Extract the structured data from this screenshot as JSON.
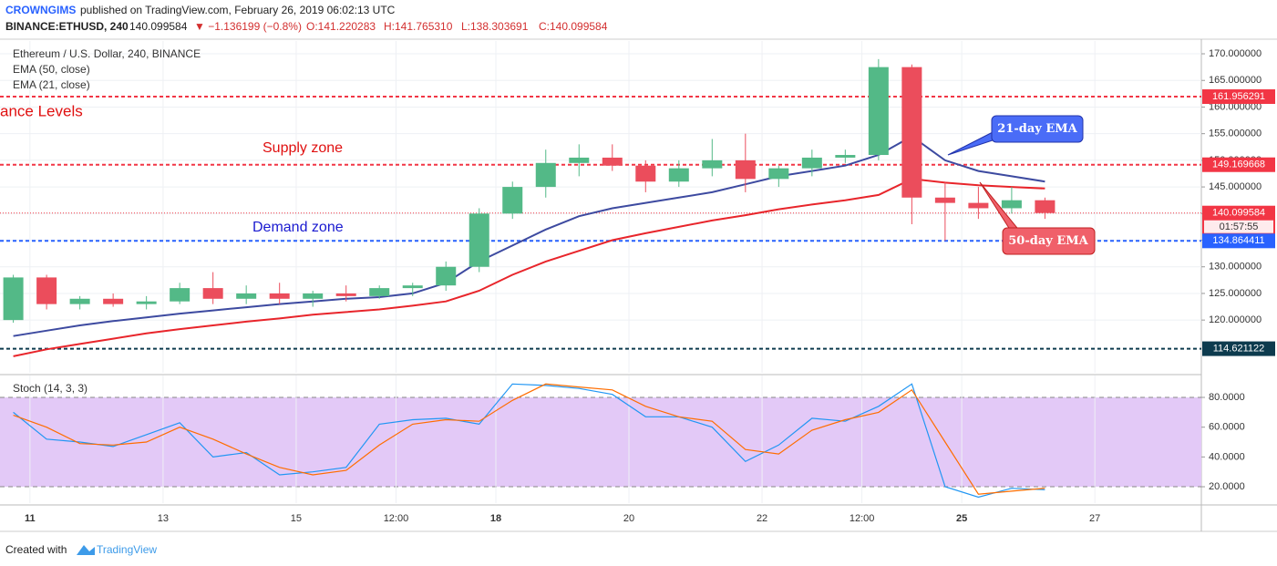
{
  "header": {
    "author": "CROWNGIMS",
    "published": "published on TradingView.com, February 26, 2019 06:02:13 UTC",
    "symbol": "BINANCE:ETHUSD, 240",
    "price": "140.099584",
    "change": "▼ −1.136199 (−0.8%)",
    "ohlc": [
      "O:141.220283",
      "H:141.765310",
      "L:138.303691",
      "C:140.099584"
    ]
  },
  "chart_data": [
    {
      "type": "candlestick",
      "title": "Ethereum / U.S. Dollar, 240, BINANCE",
      "annotations": [
        "ance Levels",
        "Supply zone",
        "Demand zone",
        "21-day EMA",
        "50-day EMA"
      ],
      "up_color": "#53b987",
      "down_color": "#eb4d5c",
      "x": [
        10.75,
        11.25,
        11.75,
        12.25,
        12.75,
        13.25,
        13.75,
        14.25,
        14.75,
        15.25,
        15.75,
        16.25,
        16.75,
        17.25,
        17.75,
        18.25,
        18.75,
        19.25,
        19.75,
        20.25,
        20.75,
        21.25,
        21.75,
        22.25,
        22.75,
        23.25,
        23.75,
        24.25,
        24.75,
        25.25,
        25.75,
        26.25
      ],
      "open": [
        120,
        128,
        123,
        124,
        123,
        123.5,
        126,
        124,
        125,
        124,
        125,
        124.5,
        126,
        126.5,
        130,
        140,
        145,
        149.5,
        150.5,
        149,
        146,
        148.5,
        150,
        146.5,
        148.5,
        150.5,
        151,
        167.5,
        143,
        142,
        141,
        142.5
      ],
      "high": [
        128.5,
        128.5,
        124.5,
        125,
        124.5,
        127,
        129,
        126.5,
        127,
        125.5,
        126.5,
        126.5,
        127,
        131,
        141,
        146,
        152,
        153,
        153,
        150,
        150,
        154,
        155,
        149,
        152,
        152,
        169,
        168,
        146,
        145,
        145,
        143
      ],
      "low": [
        119.5,
        122,
        122,
        122.5,
        122,
        123,
        123,
        123,
        123,
        122.5,
        123.5,
        124,
        124.5,
        125.5,
        129,
        139,
        143,
        147,
        148,
        144,
        145,
        147,
        144,
        145,
        147,
        149.5,
        150,
        138,
        134.9,
        139,
        140,
        139
      ],
      "close": [
        128,
        123,
        124,
        123,
        123.5,
        126,
        124,
        125,
        124,
        125,
        124.5,
        126,
        126.5,
        130,
        140,
        145,
        149.5,
        150.5,
        149,
        146,
        148.5,
        150,
        146.5,
        148.5,
        150.5,
        151,
        167.5,
        143,
        142,
        141,
        142.5,
        140.1
      ],
      "series": [
        {
          "name": "EMA (50, close)",
          "color": "#e8252b",
          "values": [
            113.2,
            114.5,
            115.5,
            116.5,
            117.5,
            118.3,
            119,
            119.7,
            120.3,
            121,
            121.5,
            122,
            122.7,
            123.5,
            125.5,
            128.5,
            131,
            133,
            135,
            136.3,
            137.5,
            138.7,
            139.7,
            140.8,
            141.7,
            142.5,
            143.5,
            146.5,
            145.8,
            145.3,
            145,
            144.7
          ]
        },
        {
          "name": "EMA (21, close)",
          "color": "#3d4aa0",
          "values": [
            117,
            118,
            119,
            119.8,
            120.5,
            121.2,
            121.8,
            122.4,
            123,
            123.5,
            124,
            124.3,
            125,
            127,
            131,
            134,
            137,
            139.5,
            141,
            142,
            143,
            144,
            145.5,
            147,
            148,
            149,
            151,
            154.5,
            150,
            148,
            147,
            146
          ]
        }
      ],
      "levels": [
        {
          "value": 161.956291,
          "color": "#f23645"
        },
        {
          "value": 149.169668,
          "color": "#f23645"
        },
        {
          "value": 140.099584,
          "color": "#f23645",
          "countdown": "01:57:55"
        },
        {
          "value": 134.864411,
          "color": "#2962ff"
        },
        {
          "value": 114.621122,
          "color": "#0d3b4e"
        }
      ],
      "xlim": [
        10.55,
        28.6
      ],
      "ylim": [
        110.1,
        172.4
      ],
      "yticks": [
        {
          "value": 120,
          "label": "120.000000"
        },
        {
          "value": 125,
          "label": "125.000000"
        },
        {
          "value": 130,
          "label": "130.000000"
        },
        {
          "value": 135,
          "label": "135.000000"
        },
        {
          "value": 140,
          "label": "140.000000"
        },
        {
          "value": 145,
          "label": "145.000000"
        },
        {
          "value": 150,
          "label": "150.000000"
        },
        {
          "value": 155,
          "label": "155.000000"
        },
        {
          "value": 160,
          "label": "160.000000"
        },
        {
          "value": 165,
          "label": "165.000000"
        },
        {
          "value": 170,
          "label": "170.000000"
        }
      ],
      "grid": true
    },
    {
      "type": "line",
      "title": "Stoch (14, 3, 3)",
      "x": [
        10.75,
        11.25,
        11.75,
        12.25,
        12.75,
        13.25,
        13.75,
        14.25,
        14.75,
        15.25,
        15.75,
        16.25,
        16.75,
        17.25,
        17.75,
        18.25,
        18.75,
        19.25,
        19.75,
        20.25,
        20.75,
        21.25,
        21.75,
        22.25,
        22.75,
        23.25,
        23.75,
        24.25,
        24.75,
        25.25,
        25.75,
        26.25
      ],
      "series": [
        {
          "color": "#2196f3",
          "values": [
            70,
            52,
            50,
            47,
            55,
            63,
            40,
            43,
            28,
            30,
            33,
            62,
            65,
            66,
            62,
            89,
            88,
            86,
            82,
            67,
            67,
            60,
            37,
            48,
            66,
            64,
            74,
            89,
            20,
            13,
            19,
            18
          ]
        },
        {
          "color": "#ff6d00",
          "values": [
            68,
            60,
            49,
            48,
            50,
            60,
            52,
            42,
            33,
            28,
            31,
            48,
            62,
            65,
            64,
            78,
            89,
            87,
            85,
            74,
            67,
            64,
            45,
            42,
            58,
            65,
            70,
            85,
            50,
            15,
            17,
            19
          ]
        }
      ],
      "band": [
        20,
        80
      ],
      "band_color": "#e3c9f7",
      "xlim": [
        10.55,
        28.6
      ],
      "ylim": [
        9,
        94.7
      ],
      "yticks": [
        {
          "value": 20,
          "label": "20.0000"
        },
        {
          "value": 40,
          "label": "40.0000"
        },
        {
          "value": 60,
          "label": "60.0000"
        },
        {
          "value": 80,
          "label": "80.0000"
        }
      ],
      "xticks": [
        11,
        13,
        15,
        {
          "value": 16.5,
          "label": "12:00"
        },
        18,
        20,
        22,
        {
          "value": 23.5,
          "label": "12:00"
        },
        25,
        27
      ],
      "grid": true
    }
  ],
  "footer": {
    "created": "Created with",
    "brand": "TradingView"
  }
}
